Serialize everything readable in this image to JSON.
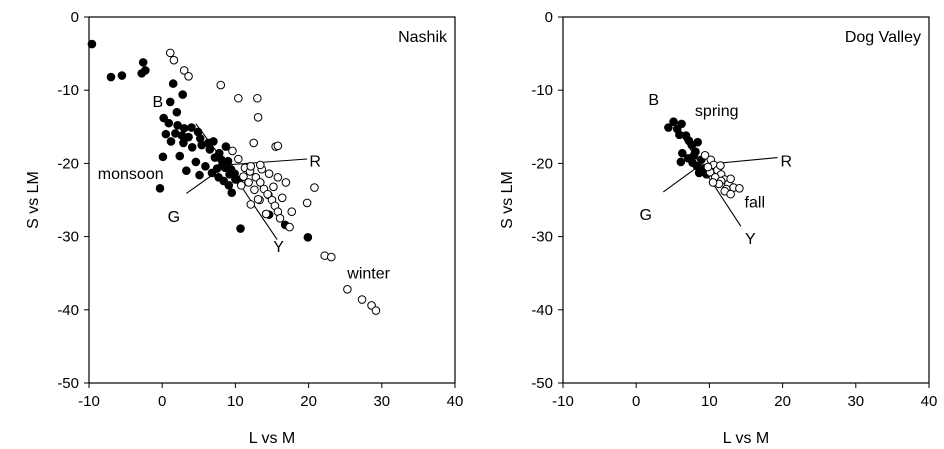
{
  "chart_data": [
    {
      "type": "scatter",
      "panel_label": "Nashik",
      "xlabel": "L vs M",
      "ylabel": "S vs LM",
      "xlim": [
        -10,
        40
      ],
      "ylim": [
        -50,
        0
      ],
      "xticks": [
        -10,
        0,
        10,
        20,
        30,
        40
      ],
      "yticks": [
        0,
        -10,
        -20,
        -30,
        -40,
        -50
      ],
      "grid": false,
      "series": [
        {
          "name": "monsoon",
          "marker": "filled-circle",
          "points": [
            [
              -9.6,
              -3.7
            ],
            [
              -7,
              -8.2
            ],
            [
              -5.5,
              -8
            ],
            [
              -2.6,
              -6.2
            ],
            [
              -2.8,
              -7.7
            ],
            [
              -2.3,
              -7.3
            ],
            [
              1.5,
              -9.1
            ],
            [
              2.8,
              -10.6
            ],
            [
              1.1,
              -11.6
            ],
            [
              2,
              -13
            ],
            [
              0.2,
              -13.8
            ],
            [
              0.9,
              -14.5
            ],
            [
              2.1,
              -14.8
            ],
            [
              3,
              -15.2
            ],
            [
              1.8,
              -15.9
            ],
            [
              2.7,
              -16.2
            ],
            [
              3.6,
              -16.4
            ],
            [
              4,
              -15.1
            ],
            [
              4.9,
              -15.7
            ],
            [
              5.2,
              -16.6
            ],
            [
              0.5,
              -16
            ],
            [
              1.2,
              -17
            ],
            [
              2.9,
              -17.2
            ],
            [
              4.1,
              -17.8
            ],
            [
              5.4,
              -17.5
            ],
            [
              6.3,
              -17.2
            ],
            [
              6.5,
              -18.1
            ],
            [
              7,
              -17
            ],
            [
              7.2,
              -19.2
            ],
            [
              7.8,
              -18.6
            ],
            [
              8.1,
              -19.5
            ],
            [
              8.2,
              -20.3
            ],
            [
              8.6,
              -20.6
            ],
            [
              9,
              -19.7
            ],
            [
              9.4,
              -20.8
            ],
            [
              9.2,
              -21.5
            ],
            [
              9.9,
              -21.4
            ],
            [
              10,
              -22.2
            ],
            [
              8.4,
              -22.4
            ],
            [
              9.1,
              -23
            ],
            [
              7.5,
              -20.7
            ],
            [
              6.8,
              -21.3
            ],
            [
              5.9,
              -20.4
            ],
            [
              5.1,
              -21.6
            ],
            [
              4.6,
              -19.8
            ],
            [
              2.4,
              -19
            ],
            [
              0.1,
              -19.1
            ],
            [
              -0.3,
              -23.4
            ],
            [
              3.3,
              -21
            ],
            [
              9.5,
              -24
            ],
            [
              10.5,
              -22.3
            ],
            [
              14.6,
              -27
            ],
            [
              10.7,
              -28.9
            ],
            [
              16.8,
              -28.4
            ],
            [
              19.9,
              -30.1
            ],
            [
              8.7,
              -17.7
            ],
            [
              7.7,
              -21.9
            ]
          ]
        },
        {
          "name": "winter",
          "marker": "open-circle",
          "points": [
            [
              1.1,
              -4.9
            ],
            [
              1.6,
              -5.9
            ],
            [
              3,
              -7.3
            ],
            [
              3.6,
              -8.1
            ],
            [
              8,
              -9.3
            ],
            [
              10.4,
              -11.1
            ],
            [
              13,
              -11.1
            ],
            [
              13.1,
              -13.7
            ],
            [
              12.5,
              -17.2
            ],
            [
              15.5,
              -17.7
            ],
            [
              15.8,
              -17.6
            ],
            [
              9.6,
              -18.3
            ],
            [
              10.4,
              -19.4
            ],
            [
              11.3,
              -20.6
            ],
            [
              12,
              -21.1
            ],
            [
              12.8,
              -21.9
            ],
            [
              13.4,
              -22.6
            ],
            [
              13.9,
              -23.5
            ],
            [
              14.5,
              -24.3
            ],
            [
              15,
              -25
            ],
            [
              15.4,
              -25.8
            ],
            [
              15.8,
              -26.6
            ],
            [
              16.1,
              -27.5
            ],
            [
              14.2,
              -26.9
            ],
            [
              13.3,
              -25
            ],
            [
              12.6,
              -23.6
            ],
            [
              11.8,
              -22.6
            ],
            [
              11.1,
              -21.8
            ],
            [
              10.8,
              -23
            ],
            [
              12.1,
              -20.4
            ],
            [
              13.6,
              -20.8
            ],
            [
              14.6,
              -21.4
            ],
            [
              15.8,
              -21.9
            ],
            [
              16.9,
              -22.6
            ],
            [
              15.2,
              -23.2
            ],
            [
              14.4,
              -24.2
            ],
            [
              13.1,
              -24.9
            ],
            [
              16.4,
              -24.7
            ],
            [
              17.7,
              -26.6
            ],
            [
              19.8,
              -25.4
            ],
            [
              20.8,
              -23.3
            ],
            [
              17.4,
              -28.7
            ],
            [
              22.2,
              -32.6
            ],
            [
              23.1,
              -32.8
            ],
            [
              25.3,
              -37.2
            ],
            [
              27.3,
              -38.6
            ],
            [
              28.6,
              -39.4
            ],
            [
              29.2,
              -40.1
            ],
            [
              13.4,
              -20.2
            ],
            [
              12.1,
              -25.6
            ]
          ]
        }
      ],
      "annotations": [
        {
          "text": "B",
          "x": -0.6,
          "y": -11.5
        },
        {
          "text": "R",
          "x": 20.9,
          "y": -19.6
        },
        {
          "text": "G",
          "x": 1.6,
          "y": -27.2
        },
        {
          "text": "Y",
          "x": 15.9,
          "y": -31.3
        },
        {
          "text": "monsoon",
          "x": -4.3,
          "y": -21.3
        },
        {
          "text": "winter",
          "x": 28.2,
          "y": -34.9
        }
      ],
      "axis_lines": [
        {
          "from": [
            8.8,
            -20.2
          ],
          "to": [
            4.6,
            -14.6
          ]
        },
        {
          "from": [
            8.8,
            -20.2
          ],
          "to": [
            19.8,
            -19.4
          ]
        },
        {
          "from": [
            8.8,
            -20.2
          ],
          "to": [
            3.3,
            -24.1
          ]
        },
        {
          "from": [
            8.8,
            -20.2
          ],
          "to": [
            15.7,
            -30.4
          ]
        }
      ]
    },
    {
      "type": "scatter",
      "panel_label": "Dog Valley",
      "xlabel": "L vs M",
      "ylabel": "S vs LM",
      "xlim": [
        -10,
        40
      ],
      "ylim": [
        -50,
        0
      ],
      "xticks": [
        -10,
        0,
        10,
        20,
        30,
        40
      ],
      "yticks": [
        0,
        -10,
        -20,
        -30,
        -40,
        -50
      ],
      "grid": false,
      "series": [
        {
          "name": "spring",
          "marker": "filled-circle",
          "points": [
            [
              4.4,
              -15.1
            ],
            [
              5.1,
              -14.3
            ],
            [
              5.6,
              -15.3
            ],
            [
              6.2,
              -14.6
            ],
            [
              6.8,
              -16.2
            ],
            [
              7.2,
              -16.9
            ],
            [
              7.6,
              -17.5
            ],
            [
              8.1,
              -18.4
            ],
            [
              8.4,
              -17.1
            ],
            [
              7.1,
              -19.3
            ],
            [
              7.7,
              -19.9
            ],
            [
              8.3,
              -20.4
            ],
            [
              8.9,
              -19.5
            ],
            [
              9.2,
              -20.8
            ],
            [
              9.6,
              -21.5
            ],
            [
              8.6,
              -21.3
            ],
            [
              6.3,
              -18.6
            ],
            [
              6.1,
              -19.8
            ],
            [
              7.9,
              -18.9
            ],
            [
              5.9,
              -16.1
            ]
          ]
        },
        {
          "name": "fall",
          "marker": "open-circle",
          "points": [
            [
              9.4,
              -18.9
            ],
            [
              10.2,
              -19.5
            ],
            [
              10.6,
              -20.2
            ],
            [
              11.1,
              -20.9
            ],
            [
              11.6,
              -21.5
            ],
            [
              12.1,
              -22.2
            ],
            [
              12.6,
              -22.8
            ],
            [
              13.3,
              -23.3
            ],
            [
              10.1,
              -21.2
            ],
            [
              10.8,
              -21.9
            ],
            [
              11.6,
              -22.4
            ],
            [
              12.3,
              -23.5
            ],
            [
              12.9,
              -22.1
            ],
            [
              14.1,
              -23.4
            ],
            [
              11.3,
              -22.8
            ],
            [
              12.1,
              -23.8
            ],
            [
              9.8,
              -20.5
            ],
            [
              11.5,
              -20.3
            ],
            [
              10.5,
              -22.6
            ],
            [
              12.9,
              -24.2
            ]
          ]
        }
      ],
      "annotations": [
        {
          "text": "B",
          "x": 2.4,
          "y": -11.2
        },
        {
          "text": "R",
          "x": 20.5,
          "y": -19.6
        },
        {
          "text": "G",
          "x": 1.3,
          "y": -26.9
        },
        {
          "text": "Y",
          "x": 15.6,
          "y": -30.2
        },
        {
          "text": "spring",
          "x": 11,
          "y": -12.7
        },
        {
          "text": "fall",
          "x": 16.2,
          "y": -25.2
        }
      ],
      "axis_lines": [
        {
          "from": [
            8.8,
            -20.2
          ],
          "to": [
            6.2,
            -16.2
          ]
        },
        {
          "from": [
            8.8,
            -20.2
          ],
          "to": [
            19.3,
            -19.2
          ]
        },
        {
          "from": [
            8.8,
            -20.2
          ],
          "to": [
            3.7,
            -23.9
          ]
        },
        {
          "from": [
            8.8,
            -20.2
          ],
          "to": [
            14.3,
            -28.6
          ]
        }
      ]
    }
  ]
}
